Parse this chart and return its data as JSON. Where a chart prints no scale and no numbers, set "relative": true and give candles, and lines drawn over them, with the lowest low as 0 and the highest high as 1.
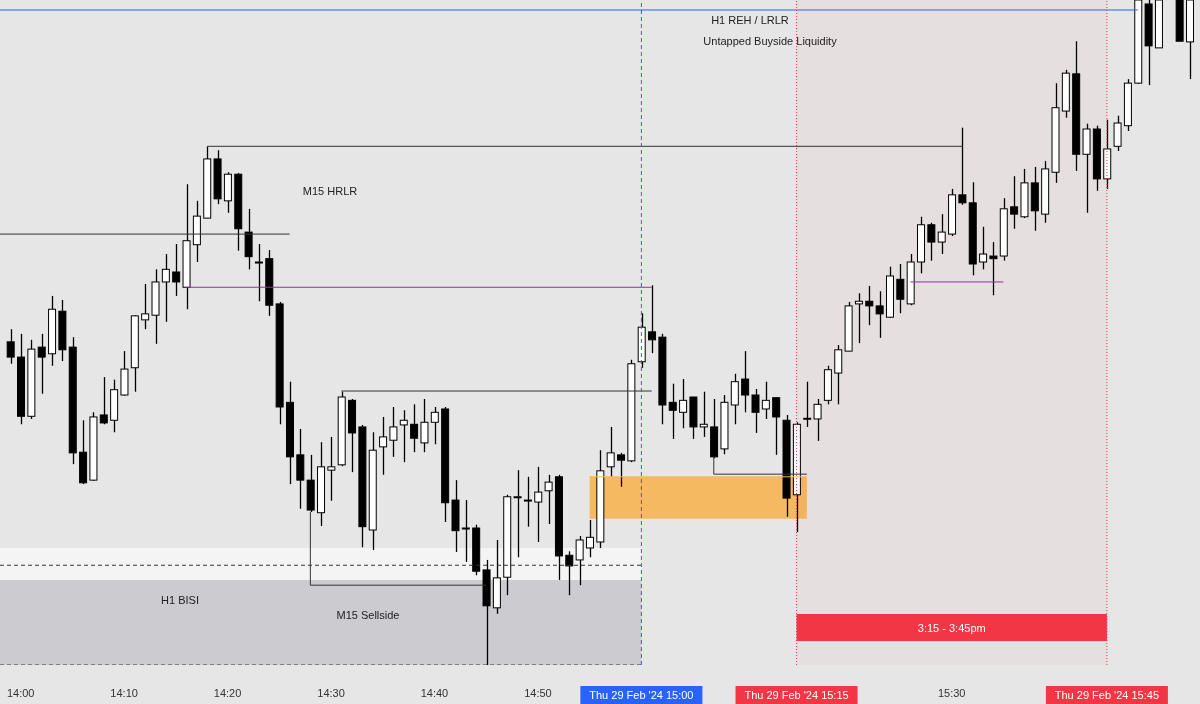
{
  "chart_data": {
    "type": "candlestick",
    "relative": true,
    "color": "#000000",
    "xlim": [
      "2024-02-29T13:58",
      "2024-02-29T15:54"
    ],
    "xticks": [
      {
        "value": "2024-02-29T14:00",
        "label": "14:00"
      },
      {
        "value": "2024-02-29T14:10",
        "label": "14:10"
      },
      {
        "value": "2024-02-29T14:20",
        "label": "14:20"
      },
      {
        "value": "2024-02-29T14:30",
        "label": "14:30"
      },
      {
        "value": "2024-02-29T14:40",
        "label": "14:40"
      },
      {
        "value": "2024-02-29T14:50",
        "label": "14:50"
      },
      {
        "value": "2024-02-29T15:30",
        "label": "15:30"
      }
    ],
    "x": [
      "2024-02-29T13:59",
      "2024-02-29T14:00",
      "2024-02-29T14:01",
      "2024-02-29T14:02",
      "2024-02-29T14:03",
      "2024-02-29T14:04",
      "2024-02-29T14:05",
      "2024-02-29T14:06",
      "2024-02-29T14:07",
      "2024-02-29T14:08",
      "2024-02-29T14:09",
      "2024-02-29T14:10",
      "2024-02-29T14:11",
      "2024-02-29T14:12",
      "2024-02-29T14:13",
      "2024-02-29T14:14",
      "2024-02-29T14:15",
      "2024-02-29T14:16",
      "2024-02-29T14:17",
      "2024-02-29T14:18",
      "2024-02-29T14:19",
      "2024-02-29T14:20",
      "2024-02-29T14:21",
      "2024-02-29T14:22",
      "2024-02-29T14:23",
      "2024-02-29T14:24",
      "2024-02-29T14:25",
      "2024-02-29T14:26",
      "2024-02-29T14:27",
      "2024-02-29T14:28",
      "2024-02-29T14:29",
      "2024-02-29T14:30",
      "2024-02-29T14:31",
      "2024-02-29T14:32",
      "2024-02-29T14:33",
      "2024-02-29T14:34",
      "2024-02-29T14:35",
      "2024-02-29T14:36",
      "2024-02-29T14:37",
      "2024-02-29T14:38",
      "2024-02-29T14:39",
      "2024-02-29T14:40",
      "2024-02-29T14:41",
      "2024-02-29T14:42",
      "2024-02-29T14:43",
      "2024-02-29T14:44",
      "2024-02-29T14:45",
      "2024-02-29T14:46",
      "2024-02-29T14:47",
      "2024-02-29T14:48",
      "2024-02-29T14:49",
      "2024-02-29T14:50",
      "2024-02-29T14:51",
      "2024-02-29T14:52",
      "2024-02-29T14:53",
      "2024-02-29T14:54",
      "2024-02-29T14:55",
      "2024-02-29T14:56",
      "2024-02-29T14:57",
      "2024-02-29T14:58",
      "2024-02-29T14:59",
      "2024-02-29T15:00",
      "2024-02-29T15:01",
      "2024-02-29T15:02",
      "2024-02-29T15:03",
      "2024-02-29T15:04",
      "2024-02-29T15:05",
      "2024-02-29T15:06",
      "2024-02-29T15:07",
      "2024-02-29T15:08",
      "2024-02-29T15:09",
      "2024-02-29T15:10",
      "2024-02-29T15:11",
      "2024-02-29T15:12",
      "2024-02-29T15:13",
      "2024-02-29T15:14",
      "2024-02-29T15:15",
      "2024-02-29T15:16",
      "2024-02-29T15:17",
      "2024-02-29T15:18",
      "2024-02-29T15:19",
      "2024-02-29T15:20",
      "2024-02-29T15:21",
      "2024-02-29T15:22",
      "2024-02-29T15:23",
      "2024-02-29T15:24",
      "2024-02-29T15:25",
      "2024-02-29T15:26",
      "2024-02-29T15:27",
      "2024-02-29T15:28",
      "2024-02-29T15:29",
      "2024-02-29T15:30",
      "2024-02-29T15:31",
      "2024-02-29T15:32",
      "2024-02-29T15:33",
      "2024-02-29T15:34",
      "2024-02-29T15:35",
      "2024-02-29T15:36",
      "2024-02-29T15:37",
      "2024-02-29T15:38",
      "2024-02-29T15:39",
      "2024-02-29T15:40",
      "2024-02-29T15:41",
      "2024-02-29T15:42",
      "2024-02-29T15:43",
      "2024-02-29T15:44",
      "2024-02-29T15:45",
      "2024-02-29T15:46",
      "2024-02-29T15:47",
      "2024-02-29T15:48",
      "2024-02-29T15:49",
      "2024-02-29T15:50",
      "2024-02-29T15:52",
      "2024-02-29T15:53"
    ],
    "ohlc": [
      [
        0.486,
        0.505,
        0.453,
        0.463
      ],
      [
        0.463,
        0.498,
        0.362,
        0.374
      ],
      [
        0.374,
        0.489,
        0.37,
        0.475
      ],
      [
        0.478,
        0.498,
        0.408,
        0.463
      ],
      [
        0.468,
        0.555,
        0.45,
        0.535
      ],
      [
        0.532,
        0.549,
        0.457,
        0.474
      ],
      [
        0.478,
        0.493,
        0.302,
        0.319
      ],
      [
        0.32,
        0.368,
        0.272,
        0.274
      ],
      [
        0.278,
        0.38,
        0.277,
        0.373
      ],
      [
        0.376,
        0.433,
        0.362,
        0.364
      ],
      [
        0.368,
        0.429,
        0.35,
        0.414
      ],
      [
        0.406,
        0.472,
        0.405,
        0.445
      ],
      [
        0.447,
        0.526,
        0.411,
        0.525
      ],
      [
        0.519,
        0.573,
        0.505,
        0.528
      ],
      [
        0.526,
        0.595,
        0.483,
        0.576
      ],
      [
        0.576,
        0.618,
        0.516,
        0.595
      ],
      [
        0.591,
        0.633,
        0.555,
        0.576
      ],
      [
        0.568,
        0.723,
        0.535,
        0.638
      ],
      [
        0.632,
        0.698,
        0.606,
        0.675
      ],
      [
        0.672,
        0.779,
        0.672,
        0.761
      ],
      [
        0.761,
        0.774,
        0.693,
        0.701
      ],
      [
        0.698,
        0.741,
        0.68,
        0.738
      ],
      [
        0.738,
        0.74,
        0.623,
        0.656
      ],
      [
        0.651,
        0.686,
        0.595,
        0.614
      ],
      [
        0.606,
        0.633,
        0.547,
        0.606
      ],
      [
        0.611,
        0.624,
        0.525,
        0.541
      ],
      [
        0.543,
        0.546,
        0.362,
        0.388
      ],
      [
        0.395,
        0.426,
        0.272,
        0.313
      ],
      [
        0.316,
        0.355,
        0.235,
        0.278
      ],
      [
        0.278,
        0.316,
        0.23,
        0.233
      ],
      [
        0.229,
        0.335,
        0.209,
        0.298
      ],
      [
        0.293,
        0.343,
        0.247,
        0.298
      ],
      [
        0.301,
        0.411,
        0.299,
        0.403
      ],
      [
        0.398,
        0.4,
        0.29,
        0.349
      ],
      [
        0.358,
        0.361,
        0.177,
        0.208
      ],
      [
        0.203,
        0.35,
        0.173,
        0.323
      ],
      [
        0.328,
        0.373,
        0.286,
        0.343
      ],
      [
        0.338,
        0.388,
        0.313,
        0.358
      ],
      [
        0.361,
        0.383,
        0.305,
        0.368
      ],
      [
        0.362,
        0.392,
        0.32,
        0.341
      ],
      [
        0.334,
        0.4,
        0.32,
        0.365
      ],
      [
        0.365,
        0.388,
        0.332,
        0.38
      ],
      [
        0.385,
        0.388,
        0.215,
        0.244
      ],
      [
        0.248,
        0.278,
        0.17,
        0.202
      ],
      [
        0.206,
        0.248,
        0.155,
        0.206
      ],
      [
        0.206,
        0.211,
        0.135,
        0.141
      ],
      [
        0.143,
        0.158,
        0,
        0.089
      ],
      [
        0.086,
        0.188,
        0.077,
        0.131
      ],
      [
        0.132,
        0.256,
        0.105,
        0.253
      ],
      [
        0.253,
        0.293,
        0.162,
        0.253
      ],
      [
        0.248,
        0.283,
        0.208,
        0.248
      ],
      [
        0.245,
        0.298,
        0.185,
        0.26
      ],
      [
        0.262,
        0.286,
        0.212,
        0.275
      ],
      [
        0.283,
        0.286,
        0.128,
        0.164
      ],
      [
        0.165,
        0.171,
        0.105,
        0.149
      ],
      [
        0.158,
        0.194,
        0.12,
        0.188
      ],
      [
        0.176,
        0.218,
        0.162,
        0.192
      ],
      [
        0.185,
        0.323,
        0.176,
        0.292
      ],
      [
        0.298,
        0.358,
        0.283,
        0.319
      ],
      [
        0.316,
        0.319,
        0.268,
        0.308
      ],
      [
        0.307,
        0.459,
        0.305,
        0.453
      ],
      [
        0.456,
        0.529,
        0.447,
        0.508
      ],
      [
        0.501,
        0.571,
        0.469,
        0.489
      ],
      [
        0.493,
        0.498,
        0.362,
        0.391
      ],
      [
        0.395,
        0.423,
        0.34,
        0.383
      ],
      [
        0.38,
        0.43,
        0.356,
        0.398
      ],
      [
        0.403,
        0.403,
        0.34,
        0.358
      ],
      [
        0.358,
        0.411,
        0.343,
        0.362
      ],
      [
        0.358,
        0.4,
        0.311,
        0.313
      ],
      [
        0.325,
        0.406,
        0.317,
        0.395
      ],
      [
        0.391,
        0.438,
        0.362,
        0.426
      ],
      [
        0.43,
        0.472,
        0.38,
        0.406
      ],
      [
        0.406,
        0.415,
        0.349,
        0.38
      ],
      [
        0.385,
        0.426,
        0.37,
        0.398
      ],
      [
        0.402,
        0.402,
        0.316,
        0.373
      ],
      [
        0.368,
        0.376,
        0.223,
        0.251
      ],
      [
        0.256,
        0.365,
        0.2,
        0.362
      ],
      [
        0.371,
        0.426,
        0.358,
        0.371
      ],
      [
        0.37,
        0.4,
        0.337,
        0.392
      ],
      [
        0.398,
        0.45,
        0.392,
        0.444
      ],
      [
        0.439,
        0.481,
        0.392,
        0.474
      ],
      [
        0.472,
        0.546,
        0.472,
        0.54
      ],
      [
        0.543,
        0.559,
        0.484,
        0.547
      ],
      [
        0.547,
        0.57,
        0.511,
        0.54
      ],
      [
        0.54,
        0.562,
        0.492,
        0.528
      ],
      [
        0.523,
        0.599,
        0.522,
        0.585
      ],
      [
        0.58,
        0.603,
        0.529,
        0.55
      ],
      [
        0.543,
        0.618,
        0.541,
        0.606
      ],
      [
        0.606,
        0.674,
        0.589,
        0.662
      ],
      [
        0.662,
        0.665,
        0.608,
        0.636
      ],
      [
        0.636,
        0.678,
        0.618,
        0.651
      ],
      [
        0.648,
        0.716,
        0.645,
        0.707
      ],
      [
        0.707,
        0.808,
        0.692,
        0.695
      ],
      [
        0.695,
        0.726,
        0.586,
        0.603
      ],
      [
        0.606,
        0.659,
        0.595,
        0.618
      ],
      [
        0.615,
        0.636,
        0.556,
        0.611
      ],
      [
        0.615,
        0.702,
        0.608,
        0.686
      ],
      [
        0.689,
        0.735,
        0.656,
        0.678
      ],
      [
        0.674,
        0.746,
        0.672,
        0.725
      ],
      [
        0.725,
        0.749,
        0.653,
        0.683
      ],
      [
        0.678,
        0.758,
        0.665,
        0.746
      ],
      [
        0.741,
        0.875,
        0.725,
        0.838
      ],
      [
        0.833,
        0.895,
        0.823,
        0.89
      ],
      [
        0.889,
        0.938,
        0.743,
        0.768
      ],
      [
        0.768,
        0.814,
        0.68,
        0.806
      ],
      [
        0.806,
        0.811,
        0.713,
        0.731
      ],
      [
        0.731,
        0.82,
        0.716,
        0.776
      ],
      [
        0.78,
        0.826,
        0.773,
        0.815
      ],
      [
        0.811,
        0.881,
        0.803,
        0.875
      ],
      [
        0.875,
        1,
        0.874,
        1
      ],
      [
        0.994,
        1,
        0.872,
        0.931
      ],
      [
        0.928,
        1,
        0.928,
        1
      ],
      [
        1,
        1,
        0.938,
        0.938
      ],
      [
        0.937,
        1,
        0.881,
        1
      ]
    ],
    "series": [
      {
        "type": "area",
        "x": [
          "2024-02-29T13:58",
          "2024-02-29T15:00"
        ],
        "values": [
          0.176,
          0.176
        ],
        "color": "#f4f4f4"
      },
      {
        "type": "area",
        "x": [
          "2024-02-29T13:58",
          "2024-02-29T15:00"
        ],
        "values": [
          0.128,
          0.128
        ],
        "color": "#cbcbd0"
      },
      {
        "type": "line",
        "x": [
          "2024-02-29T14:55",
          "2024-02-29T15:16"
        ],
        "values": [
          0.283,
          0.283
        ],
        "lower": [
          0.22,
          0.22
        ],
        "upper": [
          0.283,
          0.283
        ],
        "color": "#f5b962",
        "line_style": "solid"
      },
      {
        "type": "line",
        "x": [
          "2024-02-29T13:58",
          "2024-02-29T15:00"
        ],
        "values": [
          0.15,
          0.15
        ],
        "color": "#333333",
        "line_style": "dashed"
      },
      {
        "type": "line",
        "x": [
          "2024-02-29T13:58",
          "2024-02-29T15:00"
        ],
        "values": [
          0,
          0
        ],
        "color": "#333333",
        "line_style": "dashed"
      },
      {
        "type": "line",
        "x": [
          "2024-02-29T13:58",
          "2024-02-29T15:48"
        ],
        "values": [
          0.985,
          0.985
        ],
        "color": "#2962ff",
        "line_style": "solid"
      },
      {
        "type": "line",
        "x": [
          "2024-02-29T14:18",
          "2024-02-29T15:31"
        ],
        "values": [
          0.78,
          0.78
        ],
        "color": "#333333",
        "line_style": "solid"
      },
      {
        "type": "line",
        "x": [
          "2024-02-29T13:58",
          "2024-02-29T14:26"
        ],
        "values": [
          0.648,
          0.648
        ],
        "color": "#333333",
        "line_style": "solid"
      },
      {
        "type": "line",
        "x": [
          "2024-02-29T14:16",
          "2024-02-29T15:01"
        ],
        "values": [
          0.568,
          0.568
        ],
        "color": "#9c27b0",
        "line_style": "solid"
      },
      {
        "type": "line",
        "x": [
          "2024-02-29T15:26",
          "2024-02-29T15:35"
        ],
        "values": [
          0.576,
          0.576
        ],
        "color": "#9c27b0",
        "line_style": "solid"
      },
      {
        "type": "line",
        "x": [
          "2024-02-29T14:31",
          "2024-02-29T15:01"
        ],
        "values": [
          0.412,
          0.412
        ],
        "color": "#333333",
        "line_style": "solid"
      },
      {
        "type": "line",
        "x": [
          "2024-02-29T15:07",
          "2024-02-29T15:07",
          "2024-02-29T15:16"
        ],
        "values": [
          0.313,
          0.287,
          0.287
        ],
        "color": "#333333",
        "line_style": "solid"
      },
      {
        "type": "line",
        "x": [
          "2024-02-29T14:28",
          "2024-02-29T14:28",
          "2024-02-29T14:45"
        ],
        "values": [
          0.23,
          0.12,
          0.12
        ],
        "color": "#333333",
        "line_style": "solid"
      }
    ],
    "ref_lines": [
      {
        "axis": "x",
        "value": "2024-02-29T15:00",
        "label": "Thu 29 Feb '24 15:00",
        "color": "#2962ff",
        "line_style": "dashed"
      },
      {
        "axis": "x",
        "value": "2024-02-29T15:15",
        "label": "Thu 29 Feb '24 15:15",
        "color": "#f23645",
        "line_style": "dotted"
      },
      {
        "axis": "x",
        "value": "2024-02-29T15:45",
        "label": "Thu 29 Feb '24 15:45",
        "color": "#f23645",
        "line_style": "dotted"
      }
    ],
    "bands": [
      {
        "axis": "x",
        "from": "2024-02-29T15:15",
        "to": "2024-02-29T15:45",
        "label": "3:15 - 3:45pm",
        "color": "#f23645"
      }
    ],
    "annotations": [
      "H1 REH / LRLR",
      "Untapped Buyside Liquidity",
      "M15 HRLR",
      "H1 BISI",
      "M15 Sellside"
    ]
  }
}
